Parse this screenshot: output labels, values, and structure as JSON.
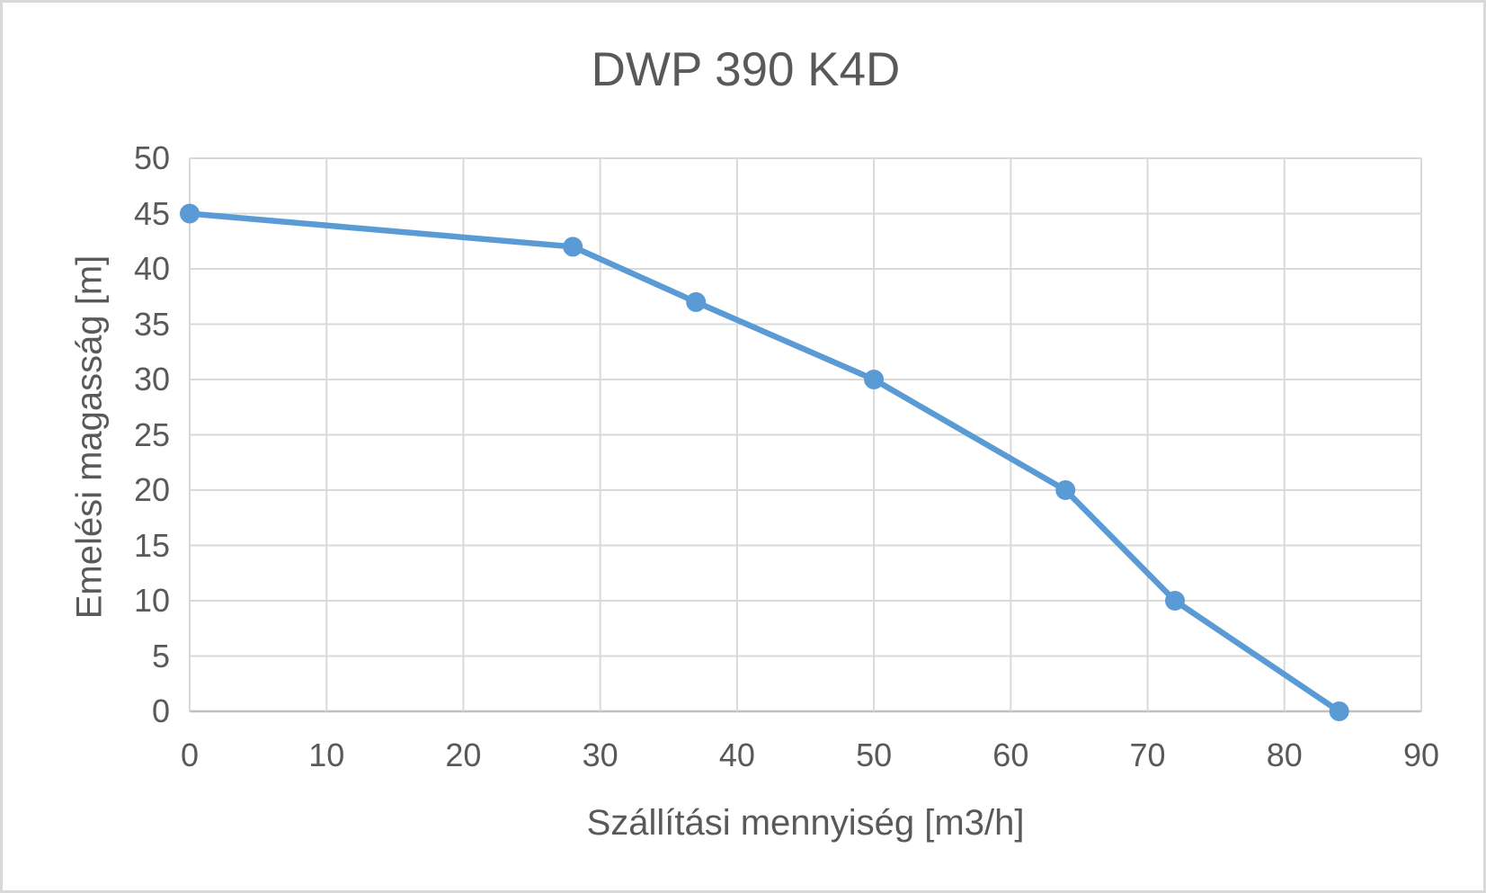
{
  "page": {
    "background": "#ffffff",
    "frame_border_color": "#d9d9d9"
  },
  "chart_data": {
    "type": "line",
    "title": "DWP 390 K4D",
    "xlabel": "Szállítási mennyiség [m3/h]",
    "ylabel": "Emelési magasság [m]",
    "xlim": [
      0,
      90
    ],
    "ylim": [
      0,
      50
    ],
    "x_ticks": [
      0,
      10,
      20,
      30,
      40,
      50,
      60,
      70,
      80,
      90
    ],
    "y_ticks": [
      0,
      5,
      10,
      15,
      20,
      25,
      30,
      35,
      40,
      45,
      50
    ],
    "grid": true,
    "legend": false,
    "series": [
      {
        "name": "DWP 390 K4D",
        "x": [
          0,
          28,
          37,
          50,
          64,
          72,
          84
        ],
        "y": [
          45,
          42,
          37,
          30,
          20,
          10,
          0
        ],
        "color": "#5b9bd5",
        "marker": "circle"
      }
    ],
    "colors": {
      "text": "#595959",
      "gridline": "#d9d9d9",
      "axis_line": "#bfbfbf"
    }
  }
}
